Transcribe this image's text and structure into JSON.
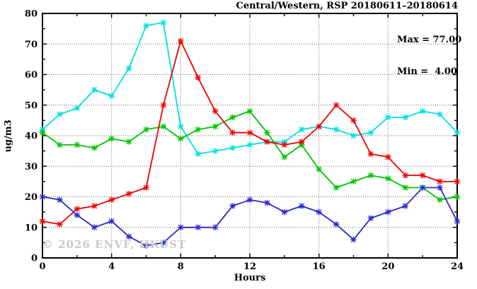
{
  "header": {
    "title": "Central/Western, RSP 20180611–20180614"
  },
  "legend": {
    "max_label": "Max = 77.00",
    "min_label": "Min =  4.00"
  },
  "watermark": "© 2026 ENVF, HKUST",
  "axes": {
    "x_label": "Hours",
    "y_label": "ug/m3"
  },
  "colors": {
    "cyan_series": "#00e0e0",
    "red_series": "#ee0000",
    "green_series": "#00c400",
    "blue_series": "#2a2ac8",
    "grid": "#666666",
    "frame": "#000000",
    "watermark_gray": "#c9c9c9"
  },
  "chart_data": {
    "type": "line",
    "title": "Central/Western, RSP 20180611–20180614",
    "xlabel": "Hours",
    "ylabel": "ug/m3",
    "xlim": [
      0,
      24
    ],
    "ylim": [
      0,
      80
    ],
    "x_major_ticks": [
      0,
      4,
      8,
      12,
      16,
      20,
      24
    ],
    "x_minor_ticks": [
      2,
      6,
      10,
      14,
      18,
      22
    ],
    "y_major_ticks": [
      0,
      10,
      20,
      30,
      40,
      50,
      60,
      70,
      80
    ],
    "y_minor_ticks": [
      5,
      15,
      25,
      35,
      45,
      55,
      65,
      75
    ],
    "grid": true,
    "grid_x": [
      4,
      8,
      12,
      16,
      20
    ],
    "grid_y": [
      10,
      20,
      30,
      40,
      50,
      60,
      70
    ],
    "legend_position": "top-right",
    "stats": {
      "max": 77.0,
      "min": 4.0
    },
    "marker": "star",
    "x": [
      0,
      1,
      2,
      3,
      4,
      5,
      6,
      7,
      8,
      9,
      10,
      11,
      12,
      13,
      14,
      15,
      16,
      17,
      18,
      19,
      20,
      21,
      22,
      23,
      24
    ],
    "series": [
      {
        "name": "series-cyan",
        "color": "#00e0e0",
        "values": [
          42,
          47,
          49,
          55,
          53,
          62,
          76,
          77,
          43,
          34,
          35,
          36,
          37,
          38,
          38,
          42,
          43,
          42,
          40,
          41,
          46,
          46,
          48,
          47,
          41
        ]
      },
      {
        "name": "series-green",
        "color": "#00c400",
        "values": [
          41,
          37,
          37,
          36,
          39,
          38,
          42,
          43,
          39,
          42,
          43,
          46,
          48,
          41,
          33,
          37,
          29,
          23,
          25,
          27,
          26,
          23,
          23,
          19,
          20
        ]
      },
      {
        "name": "series-red",
        "color": "#ee0000",
        "values": [
          12,
          11,
          16,
          17,
          19,
          21,
          23,
          50,
          71,
          59,
          48,
          41,
          41,
          38,
          37,
          38,
          43,
          50,
          45,
          34,
          33,
          27,
          27,
          25,
          25
        ]
      },
      {
        "name": "series-blue",
        "color": "#2a2ac8",
        "values": [
          20,
          19,
          14,
          10,
          12,
          7,
          4,
          5,
          10,
          10,
          10,
          17,
          19,
          18,
          15,
          17,
          15,
          11,
          6,
          13,
          15,
          17,
          23,
          23,
          12
        ]
      }
    ]
  }
}
